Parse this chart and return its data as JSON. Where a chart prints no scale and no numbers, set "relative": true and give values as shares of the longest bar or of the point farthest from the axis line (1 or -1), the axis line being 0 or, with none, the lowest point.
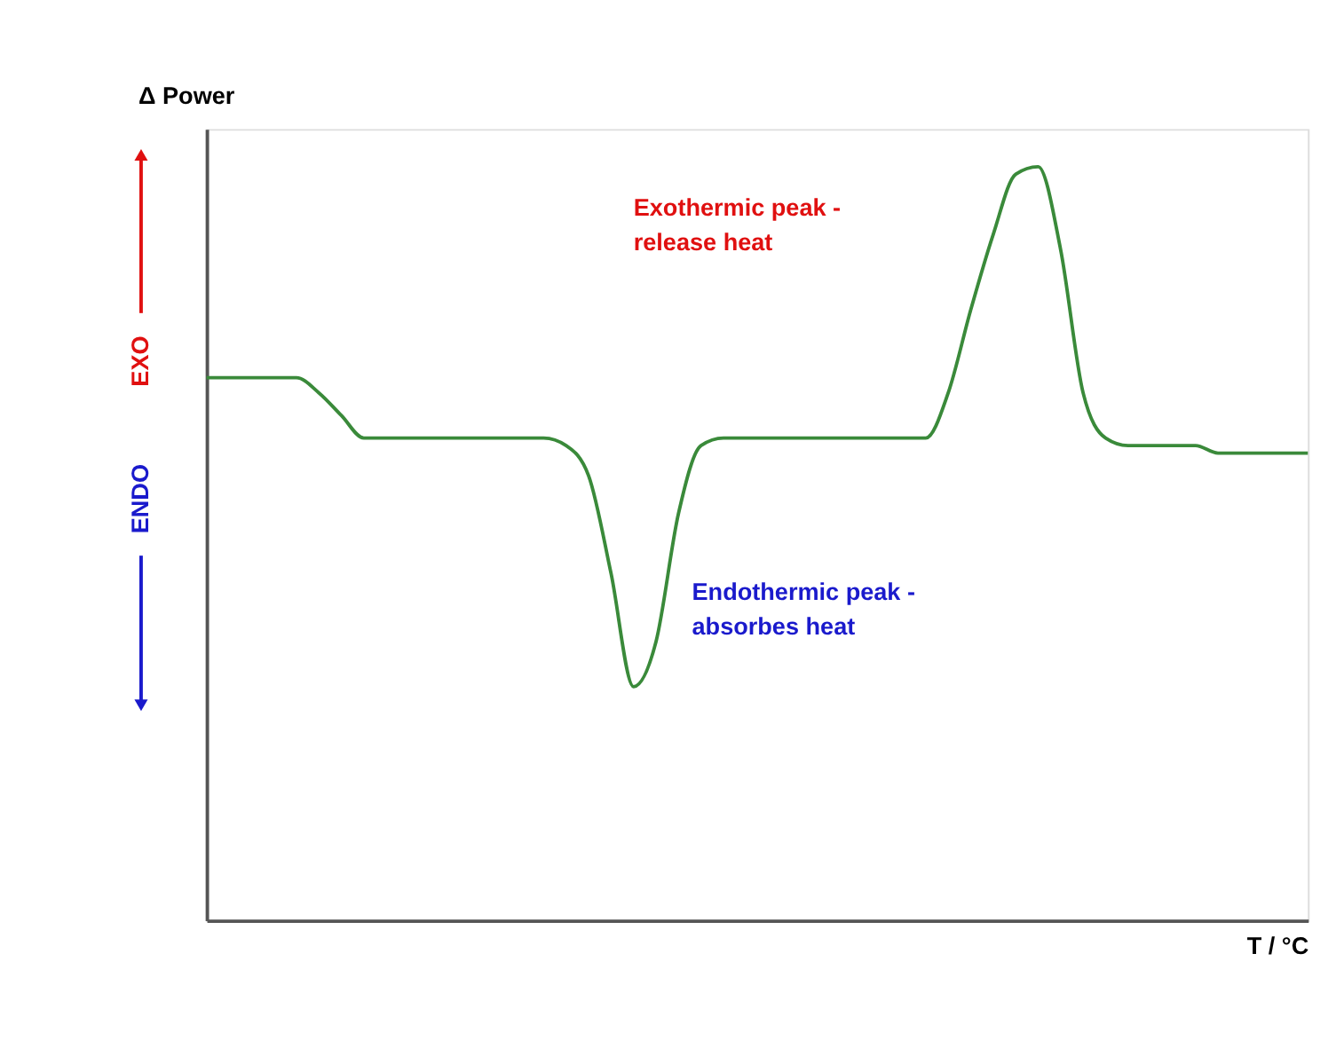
{
  "chart_data": {
    "type": "line",
    "relative": true,
    "ylabel": "Δ Power",
    "xlabel": "T / °C",
    "categories": [
      null,
      null,
      null,
      null,
      null,
      null,
      null,
      null,
      null,
      null,
      null,
      null,
      null,
      null,
      null,
      null,
      null,
      null,
      null,
      null,
      null,
      null,
      null,
      null,
      null,
      null,
      null,
      null,
      null,
      null,
      null,
      null,
      null,
      null,
      null,
      null,
      null,
      null,
      null,
      null,
      null,
      null,
      null,
      null,
      null,
      null,
      null,
      null,
      null,
      null
    ],
    "series": [
      {
        "color": "#3a8a3a",
        "values": [
          0.72,
          0.72,
          0.72,
          0.72,
          0.72,
          0.7,
          0.67,
          0.64,
          0.64,
          0.64,
          0.64,
          0.64,
          0.64,
          0.64,
          0.64,
          0.64,
          0.63,
          0.59,
          0.46,
          0.31,
          0.37,
          0.54,
          0.63,
          0.64,
          0.64,
          0.64,
          0.64,
          0.64,
          0.64,
          0.64,
          0.64,
          0.64,
          0.64,
          0.7,
          0.81,
          0.91,
          0.99,
          1.0,
          0.89,
          0.7,
          0.64,
          0.63,
          0.63,
          0.63,
          0.63,
          0.62,
          0.62,
          0.62,
          0.62,
          0.62
        ]
      }
    ],
    "annotations": [
      "Exothermic peak -\nrelease heat",
      "Endothermic peak -\nabsorbes heat",
      "EXO",
      "ENDO"
    ],
    "grid": false,
    "marker": "none",
    "line_style": "solid",
    "tick_labels": false
  }
}
